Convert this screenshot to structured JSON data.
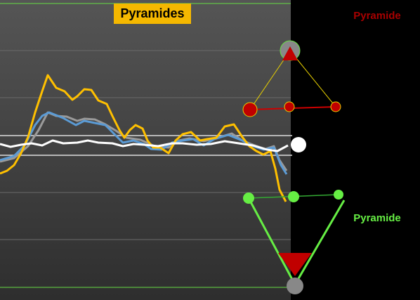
{
  "header": {
    "title": "Pyramides"
  },
  "labels": {
    "top": "Pyramide",
    "bottom": "Pyramide"
  }
}
